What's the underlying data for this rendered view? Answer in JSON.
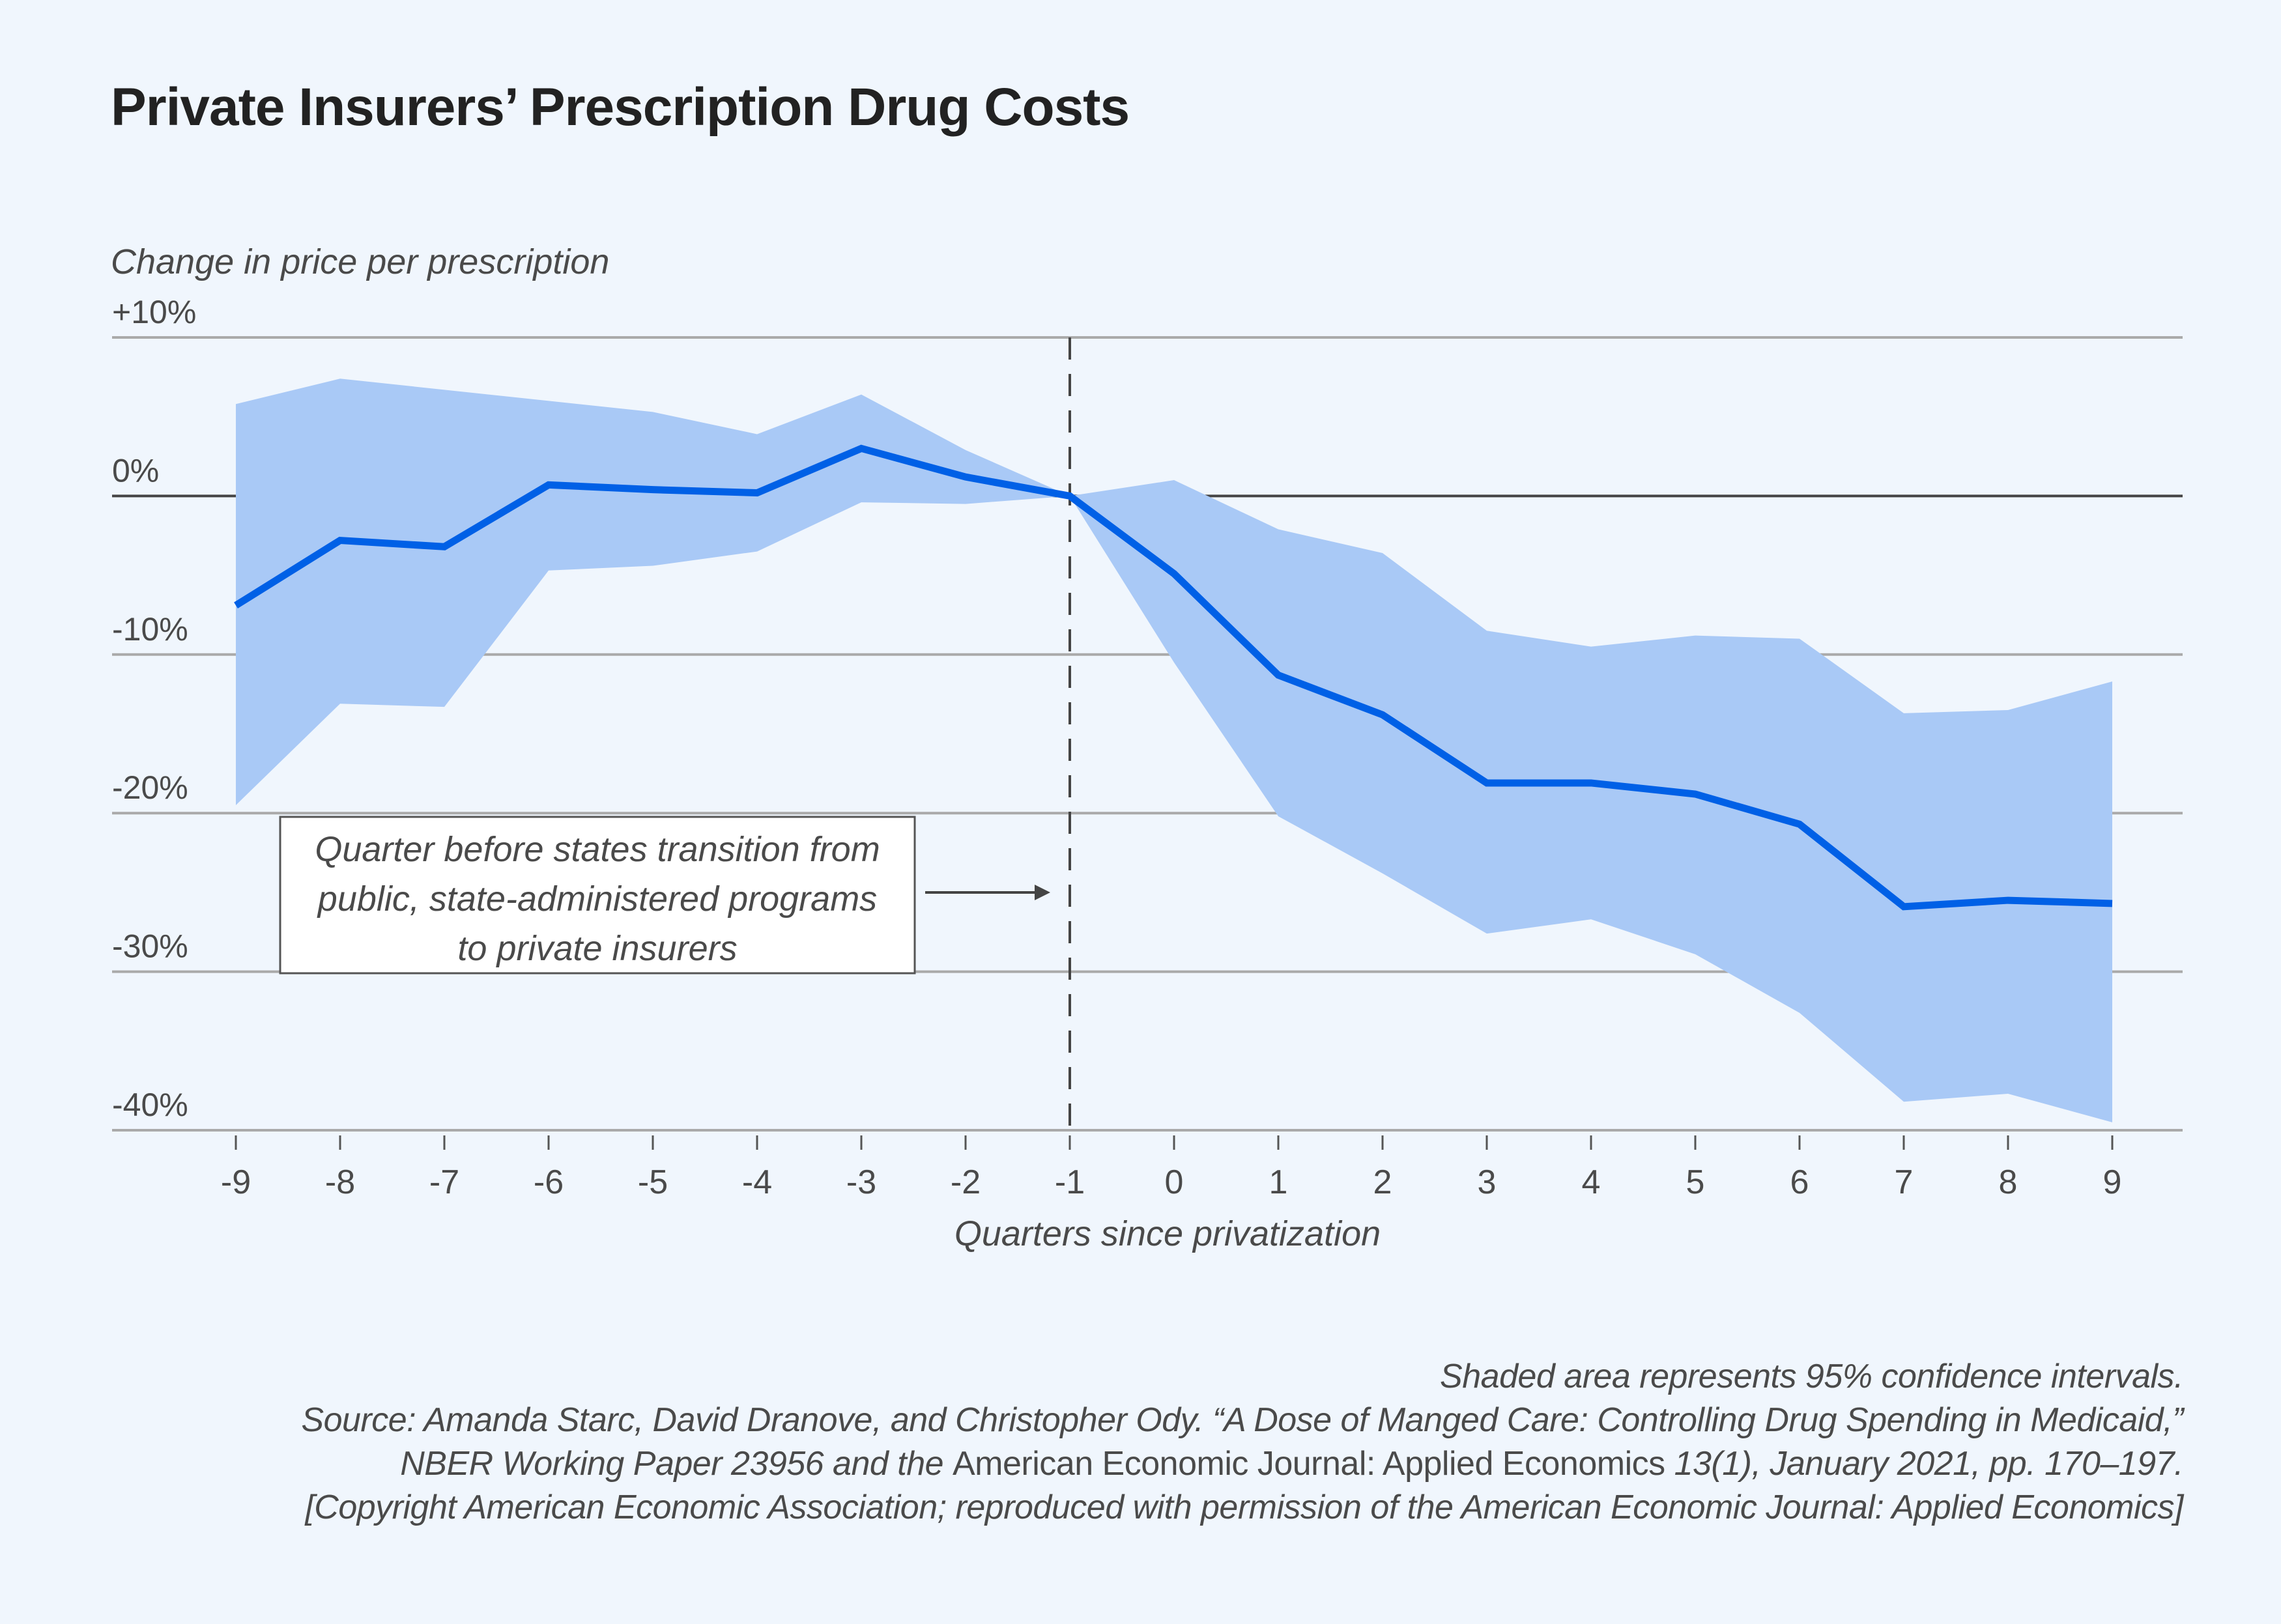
{
  "title": "Private Insurers’ Prescription Drug Costs",
  "footer": {
    "note": "Shaded area represents 95% confidence intervals.",
    "source_line1": "Source: Amanda Starc, David Dranove, and Christopher Ody. “A Dose of Manged Care: Controlling Drug Spending in Medicaid,”",
    "source_line2_a": "NBER Working Paper 23956 and the ",
    "source_line2_b": "American Economic Journal: Applied Economics",
    "source_line2_c": " 13(1), January 2021, pp. 170–197.",
    "copyright": "[Copyright American Economic Association; reproduced with permission of the American Economic Journal: Applied Economics]"
  },
  "colors": {
    "background": "#f0f6fd",
    "line": "#0060e6",
    "band": "#a9c9f6",
    "grid": "#aaaaaa",
    "zero_line": "#444444",
    "text": "#4a4a4a"
  },
  "chart_data": {
    "type": "line",
    "title": "Private Insurers’ Prescription Drug Costs",
    "xlabel": "Quarters since privatization",
    "ylabel": "Change in price per prescription",
    "x": [
      -9,
      -8,
      -7,
      -6,
      -5,
      -4,
      -3,
      -2,
      -1,
      0,
      1,
      2,
      3,
      4,
      5,
      6,
      7,
      8,
      9
    ],
    "xlim": [
      -9,
      9
    ],
    "ylim": [
      -40,
      10
    ],
    "yticks": [
      10,
      0,
      -10,
      -20,
      -30,
      -40
    ],
    "ytick_labels": [
      "+10%",
      "0%",
      "-10%",
      "-20%",
      "-30%",
      "-40%"
    ],
    "xtick_labels": [
      "-9",
      "-8",
      "-7",
      "-6",
      "-5",
      "-4",
      "-3",
      "-2",
      "-1",
      "0",
      "1",
      "2",
      "3",
      "4",
      "5",
      "6",
      "7",
      "8",
      "9"
    ],
    "grid": true,
    "series": [
      {
        "name": "Change in price per prescription",
        "values": [
          -6.9,
          -2.8,
          -3.2,
          0.7,
          0.4,
          0.2,
          3.0,
          1.2,
          0,
          -4.9,
          -11.3,
          -13.8,
          -18.1,
          -18.1,
          -18.8,
          -20.7,
          -25.9,
          -25.5,
          -25.7
        ]
      },
      {
        "name": "95% CI upper",
        "values": [
          5.8,
          7.4,
          6.7,
          6.0,
          5.3,
          3.9,
          6.4,
          2.9,
          0,
          1.0,
          -2.1,
          -3.6,
          -8.5,
          -9.5,
          -8.8,
          -9.0,
          -13.7,
          -13.5,
          -11.7
        ]
      },
      {
        "name": "95% CI lower",
        "values": [
          -19.5,
          -13.1,
          -13.3,
          -4.7,
          -4.4,
          -3.5,
          -0.4,
          -0.5,
          0,
          -10.5,
          -20.2,
          -23.8,
          -27.6,
          -26.7,
          -28.9,
          -32.6,
          -38.2,
          -37.7,
          -39.5
        ]
      }
    ],
    "reference_line": {
      "x": -1,
      "style": "dashed"
    },
    "annotation": {
      "lines": [
        "Quarter before states transition from",
        "public, state-administered programs",
        "to private insurers"
      ],
      "points_to_x": -1
    }
  }
}
